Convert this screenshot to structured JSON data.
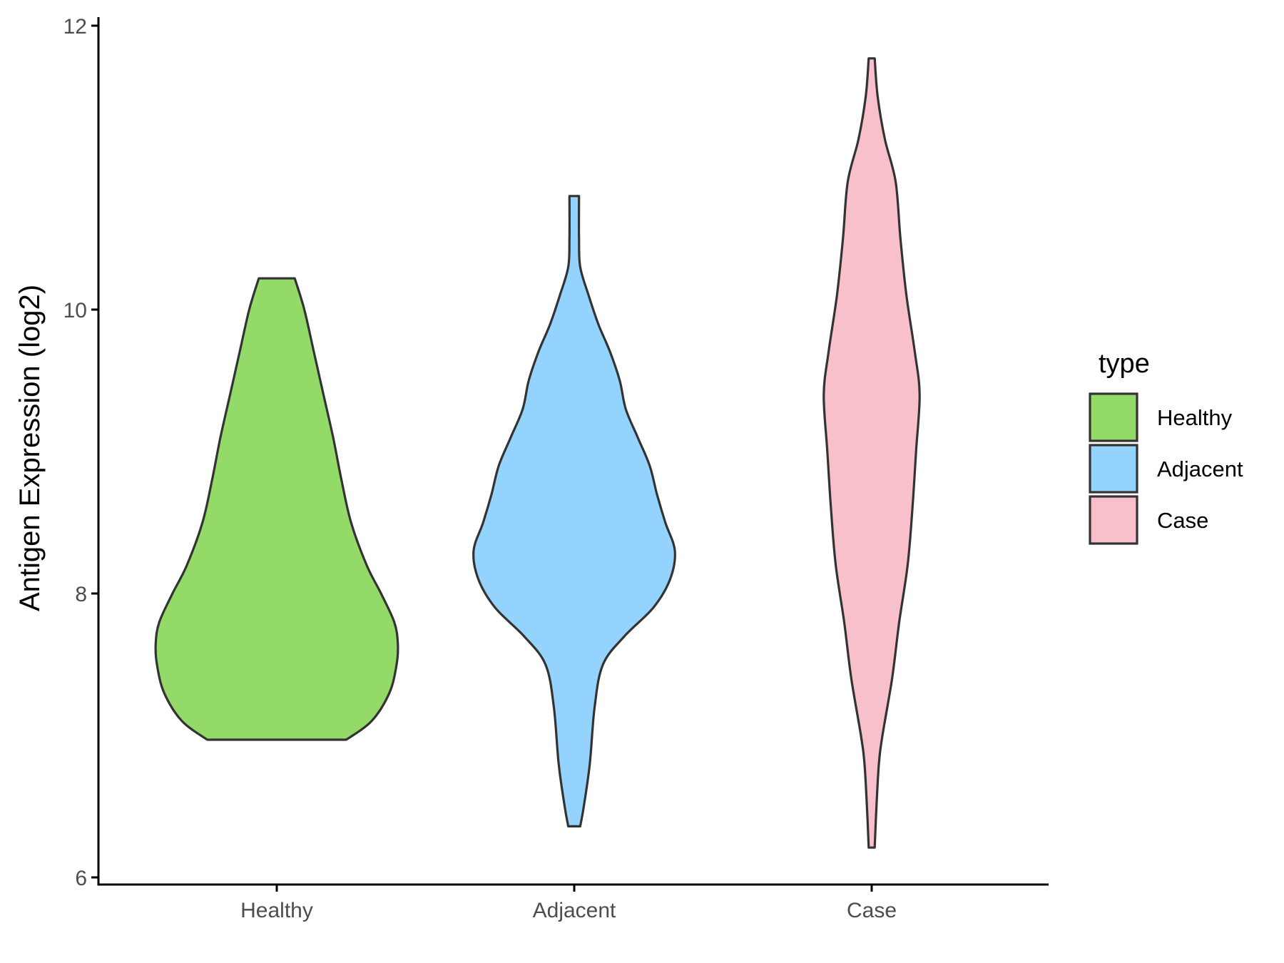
{
  "chart_data": {
    "type": "violin",
    "title": "",
    "xlabel": "",
    "ylabel": "Antigen Expression (log2)",
    "ylim": [
      6,
      12
    ],
    "yticks": [
      6,
      8,
      10,
      12
    ],
    "categories": [
      "Healthy",
      "Adjacent",
      "Case"
    ],
    "grid": false,
    "legend": {
      "title": "type",
      "position": "right",
      "entries": [
        "Healthy",
        "Adjacent",
        "Case"
      ]
    },
    "colors": {
      "Healthy": "#93DA69",
      "Adjacent": "#93D3FD",
      "Case": "#F8C0CB",
      "outline": "#333333"
    },
    "series": [
      {
        "name": "Healthy",
        "min": 6.97,
        "max": 10.22,
        "density": [
          [
            6.97,
            0.58
          ],
          [
            7.1,
            0.79
          ],
          [
            7.3,
            0.94
          ],
          [
            7.5,
            1.0
          ],
          [
            7.65,
            1.01
          ],
          [
            7.8,
            0.98
          ],
          [
            8.0,
            0.87
          ],
          [
            8.2,
            0.75
          ],
          [
            8.5,
            0.62
          ],
          [
            8.8,
            0.54
          ],
          [
            9.1,
            0.47
          ],
          [
            9.4,
            0.39
          ],
          [
            9.7,
            0.31
          ],
          [
            10.0,
            0.23
          ],
          [
            10.22,
            0.15
          ]
        ]
      },
      {
        "name": "Adjacent",
        "min": 6.36,
        "max": 10.8,
        "density": [
          [
            6.36,
            0.05
          ],
          [
            6.5,
            0.08
          ],
          [
            6.8,
            0.13
          ],
          [
            7.2,
            0.17
          ],
          [
            7.5,
            0.24
          ],
          [
            7.7,
            0.42
          ],
          [
            7.9,
            0.66
          ],
          [
            8.1,
            0.8
          ],
          [
            8.3,
            0.84
          ],
          [
            8.5,
            0.76
          ],
          [
            8.7,
            0.69
          ],
          [
            8.9,
            0.63
          ],
          [
            9.1,
            0.53
          ],
          [
            9.3,
            0.43
          ],
          [
            9.5,
            0.38
          ],
          [
            9.7,
            0.3
          ],
          [
            9.9,
            0.2
          ],
          [
            10.1,
            0.12
          ],
          [
            10.3,
            0.05
          ],
          [
            10.5,
            0.04
          ],
          [
            10.8,
            0.04
          ]
        ]
      },
      {
        "name": "Case",
        "min": 6.21,
        "max": 11.77,
        "density": [
          [
            6.21,
            0.025
          ],
          [
            6.5,
            0.04
          ],
          [
            6.8,
            0.06
          ],
          [
            7.0,
            0.09
          ],
          [
            7.4,
            0.17
          ],
          [
            7.8,
            0.23
          ],
          [
            8.2,
            0.3
          ],
          [
            8.6,
            0.34
          ],
          [
            9.0,
            0.37
          ],
          [
            9.4,
            0.4
          ],
          [
            9.7,
            0.36
          ],
          [
            10.1,
            0.29
          ],
          [
            10.5,
            0.24
          ],
          [
            10.9,
            0.2
          ],
          [
            11.2,
            0.11
          ],
          [
            11.5,
            0.05
          ],
          [
            11.77,
            0.025
          ]
        ]
      }
    ]
  }
}
